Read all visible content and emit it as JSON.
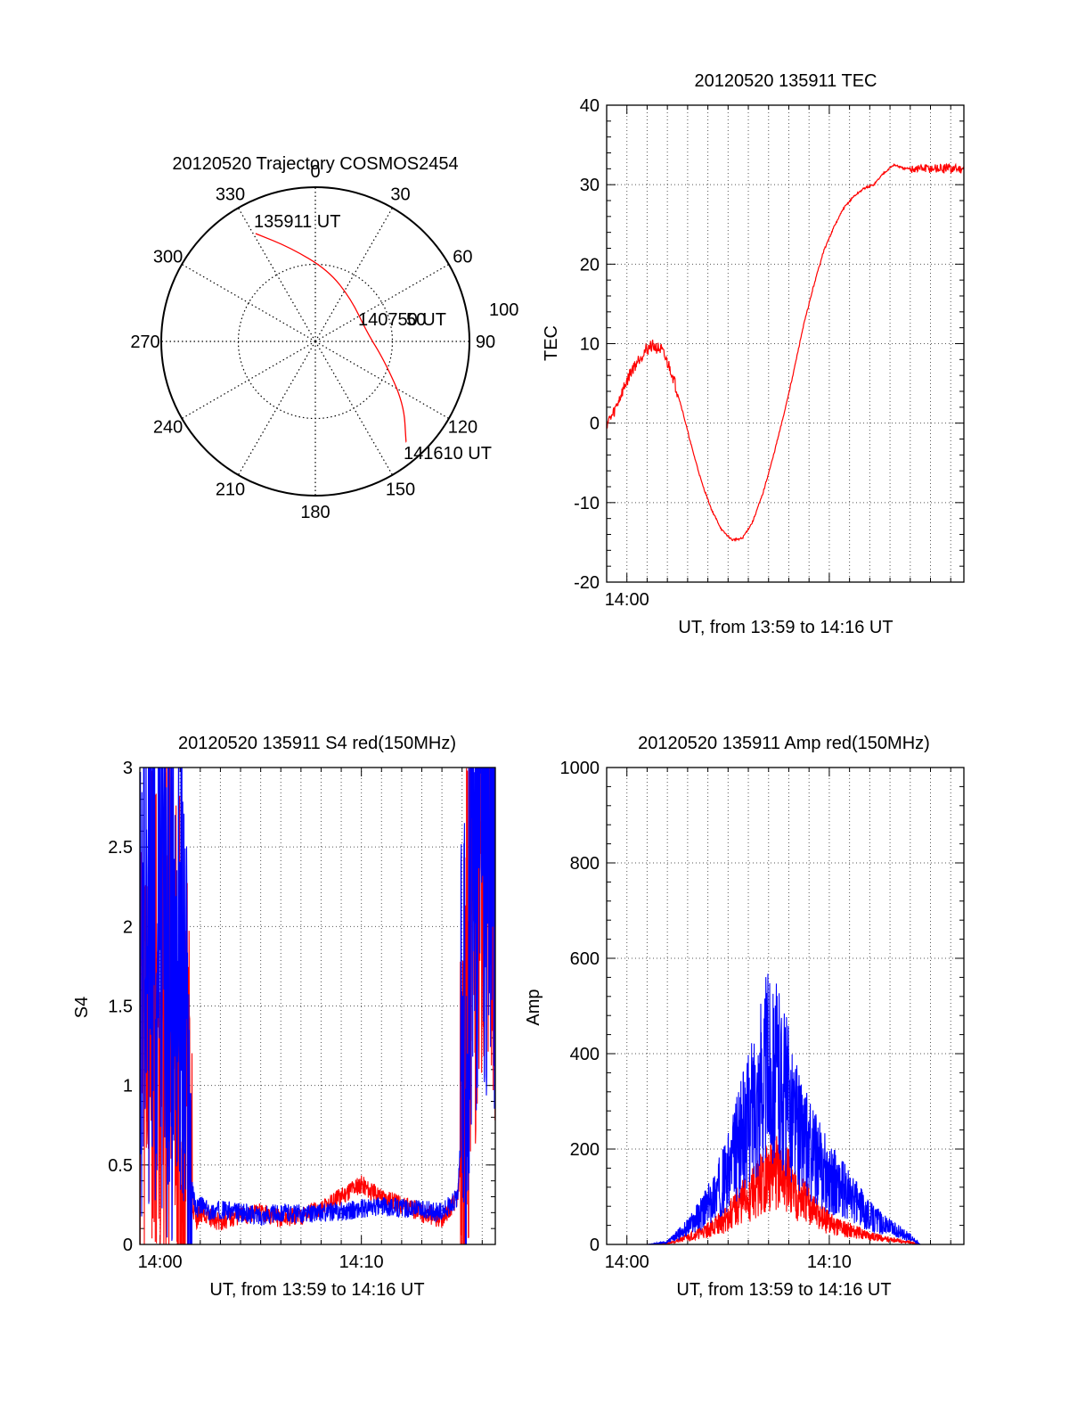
{
  "colors": {
    "red": "#ff0000",
    "blue": "#0000ff",
    "axis": "#000000",
    "grid": "#555555"
  },
  "chart_data": [
    {
      "type": "polar",
      "title": "20120520 Trajectory COSMOS2454",
      "angle_labels": [
        "0",
        "30",
        "60",
        "90",
        "120",
        "150",
        "180",
        "210",
        "240",
        "270",
        "300",
        "330"
      ],
      "radius_label": "100",
      "rings": [
        "50",
        "100"
      ],
      "series": [
        {
          "color": "#ff0000",
          "points": [
            [
              331,
              80
            ],
            [
              345,
              63
            ],
            [
              10,
              47
            ],
            [
              40,
              36
            ],
            [
              80,
              34
            ],
            [
              105,
              46
            ],
            [
              125,
              70
            ],
            [
              138,
              88
            ]
          ]
        }
      ],
      "annotations": [
        "135911 UT",
        "140750 UT",
        "141610 UT",
        "50"
      ]
    },
    {
      "type": "line",
      "title": "20120520 135911 TEC",
      "xlabel": "UT, from 13:59 to 14:16 UT",
      "ylabel": "TEC",
      "xlim": [
        0,
        17.65
      ],
      "ylim": [
        -20,
        40
      ],
      "x_ticks": [
        "14:00"
      ],
      "y_ticks": [
        "-20",
        "-10",
        "0",
        "10",
        "20",
        "30",
        "40"
      ],
      "series": [
        {
          "color": "#ff0000",
          "x": [
            0.0,
            0.3,
            0.7,
            1.2,
            1.7,
            2.2,
            2.7,
            3.2,
            3.7,
            4.2,
            4.7,
            5.2,
            5.7,
            6.2,
            6.7,
            7.2,
            7.7,
            8.2,
            8.7,
            9.2,
            9.7,
            10.2,
            10.7,
            11.2,
            11.7,
            12.2,
            12.7,
            13.2,
            13.7,
            14.2,
            14.7,
            15.2,
            15.7,
            16.2,
            16.7,
            17.2,
            17.65
          ],
          "values": [
            0,
            1,
            3.5,
            6.5,
            8.5,
            9.8,
            9.2,
            6.5,
            2,
            -3,
            -7.5,
            -11,
            -13.5,
            -14.7,
            -14.5,
            -12.5,
            -9,
            -4.5,
            0.5,
            6,
            12,
            17,
            21.5,
            24.5,
            27,
            28.5,
            29.5,
            30,
            31.5,
            32.5,
            32,
            32,
            32,
            32,
            32,
            32,
            32
          ]
        }
      ]
    },
    {
      "type": "line",
      "title": "20120520 135911 S4 red(150MHz)",
      "xlabel": "UT, from 13:59 to 14:16 UT",
      "ylabel": "S4",
      "xlim": [
        0,
        17.65
      ],
      "ylim": [
        0,
        3
      ],
      "x_ticks": [
        "14:00",
        "14:10"
      ],
      "y_ticks": [
        "0",
        "0.5",
        "1",
        "1.5",
        "2",
        "2.5",
        "3"
      ],
      "series": [
        {
          "color": "#ff0000",
          "x": [
            0.0,
            0.5,
            1.0,
            1.5,
            2.0,
            2.5,
            2.8,
            3.0,
            3.5,
            4.0,
            5.0,
            6.0,
            7.0,
            8.0,
            9.0,
            10.0,
            10.5,
            11.0,
            11.5,
            12.0,
            13.0,
            14.0,
            15.0,
            15.8,
            16.2,
            16.6,
            17.0,
            17.65
          ],
          "values": [
            1.4,
            1.6,
            1.7,
            1.5,
            1.3,
            0.3,
            0.15,
            0.2,
            0.17,
            0.14,
            0.18,
            0.2,
            0.16,
            0.18,
            0.22,
            0.3,
            0.35,
            0.38,
            0.33,
            0.3,
            0.25,
            0.2,
            0.16,
            0.3,
            1.2,
            2.2,
            2.6,
            2.4
          ]
        },
        {
          "color": "#0000ff",
          "x": [
            0.0,
            0.5,
            1.0,
            1.5,
            2.0,
            2.5,
            2.8,
            3.0,
            3.5,
            4.0,
            5.0,
            6.0,
            7.0,
            8.0,
            9.0,
            10.0,
            11.0,
            12.0,
            13.0,
            14.0,
            15.0,
            15.8,
            16.2,
            16.6,
            17.0,
            17.65
          ],
          "values": [
            1.8,
            2.0,
            1.9,
            1.7,
            1.9,
            0.4,
            0.22,
            0.25,
            0.2,
            0.22,
            0.2,
            0.18,
            0.2,
            0.19,
            0.2,
            0.21,
            0.22,
            0.24,
            0.23,
            0.22,
            0.2,
            0.3,
            1.5,
            2.4,
            2.7,
            2.5
          ]
        }
      ]
    },
    {
      "type": "line",
      "title": "20120520 135911 Amp red(150MHz)",
      "xlabel": "UT, from 13:59 to 14:16 UT",
      "ylabel": "Amp",
      "xlim": [
        0,
        17.65
      ],
      "ylim": [
        0,
        1000
      ],
      "x_ticks": [
        "14:00",
        "14:10"
      ],
      "y_ticks": [
        "0",
        "200",
        "400",
        "600",
        "800",
        "1000"
      ],
      "series": [
        {
          "color": "#ff0000",
          "x": [
            0.0,
            2.0,
            3.0,
            4.0,
            5.0,
            6.0,
            6.5,
            7.0,
            7.5,
            8.0,
            8.5,
            9.0,
            9.5,
            10.0,
            10.5,
            11.0,
            12.0,
            13.0,
            14.0,
            15.0,
            15.5,
            17.65
          ],
          "values": [
            0,
            0,
            2,
            15,
            30,
            55,
            80,
            100,
            120,
            140,
            150,
            130,
            100,
            80,
            60,
            45,
            30,
            18,
            10,
            4,
            0,
            0
          ]
        },
        {
          "color": "#0000ff",
          "x": [
            0.0,
            2.0,
            3.0,
            4.0,
            5.0,
            6.0,
            6.5,
            7.0,
            7.5,
            8.0,
            8.5,
            9.0,
            9.5,
            10.0,
            10.5,
            11.0,
            12.0,
            13.0,
            14.0,
            15.0,
            15.5,
            17.65
          ],
          "values": [
            0,
            0,
            5,
            35,
            80,
            150,
            210,
            260,
            320,
            380,
            350,
            300,
            240,
            200,
            170,
            140,
            100,
            60,
            35,
            15,
            0,
            0
          ]
        }
      ]
    }
  ]
}
